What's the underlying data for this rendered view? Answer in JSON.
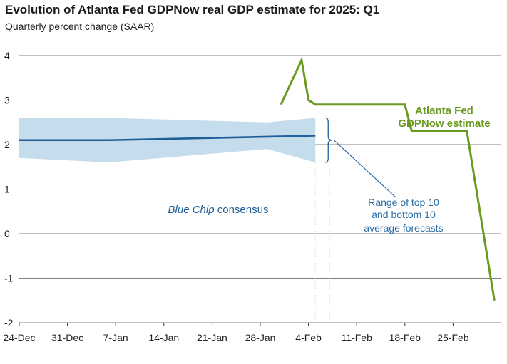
{
  "header": {
    "title": "Evolution of Atlanta Fed GDPNow real GDP estimate for 2025: Q1",
    "subtitle": "Quarterly percent change (SAAR)"
  },
  "colors": {
    "gdpnow": "#6a9a1f",
    "consensus": "#1f5f99",
    "band": "#c5dcec",
    "grid": "#555555",
    "range_label": "#2a6ea6"
  },
  "chart_data": {
    "type": "line",
    "title": "Evolution of Atlanta Fed GDPNow real GDP estimate for 2025: Q1",
    "subtitle": "Quarterly percent change (SAAR)",
    "x_axis": {
      "type": "date",
      "range": [
        "2024-12-24",
        "2025-03-04"
      ],
      "tick_labels": [
        "24-Dec",
        "31-Dec",
        "7-Jan",
        "14-Jan",
        "21-Jan",
        "28-Jan",
        "4-Feb",
        "11-Feb",
        "18-Feb",
        "25-Feb"
      ],
      "tick_dates": [
        "2024-12-24",
        "2024-12-31",
        "2025-01-07",
        "2025-01-14",
        "2025-01-21",
        "2025-01-28",
        "2025-02-04",
        "2025-02-11",
        "2025-02-18",
        "2025-02-25"
      ]
    },
    "y_axis": {
      "range": [
        -2,
        4
      ],
      "tick_labels": [
        "4",
        "3",
        "2",
        "1",
        "0",
        "-1",
        "-2"
      ],
      "tick_values": [
        4,
        3,
        2,
        1,
        0,
        -1,
        -2
      ]
    },
    "grid": "horizontal",
    "series": [
      {
        "name": "Atlanta Fed GDPNow estimate",
        "points": [
          [
            "2025-01-31",
            2.9
          ],
          [
            "2025-02-03",
            3.9
          ],
          [
            "2025-02-04",
            3.0
          ],
          [
            "2025-02-05",
            2.9
          ],
          [
            "2025-02-18",
            2.9
          ],
          [
            "2025-02-19",
            2.3
          ],
          [
            "2025-02-27",
            2.3
          ],
          [
            "2025-03-03",
            -1.5
          ]
        ]
      },
      {
        "name": "Blue Chip consensus",
        "points": [
          [
            "2024-12-24",
            2.1
          ],
          [
            "2025-01-06",
            2.1
          ],
          [
            "2025-02-05",
            2.2
          ]
        ],
        "range_upper": [
          [
            "2024-12-24",
            2.6
          ],
          [
            "2025-01-06",
            2.6
          ],
          [
            "2025-01-29",
            2.5
          ],
          [
            "2025-02-05",
            2.6
          ]
        ],
        "range_lower": [
          [
            "2024-12-24",
            1.7
          ],
          [
            "2025-01-06",
            1.6
          ],
          [
            "2025-01-29",
            1.9
          ],
          [
            "2025-02-05",
            1.6
          ]
        ]
      }
    ],
    "annotations": {
      "gdpnow_label_line1": "Atlanta Fed",
      "gdpnow_label_line2": "GDPNow estimate",
      "consensus_label_italic": "Blue Chip",
      "consensus_label_rest": " consensus",
      "range_label_line1": "Range of top 10",
      "range_label_line2": "and bottom 10",
      "range_label_line3": "average forecasts"
    }
  }
}
